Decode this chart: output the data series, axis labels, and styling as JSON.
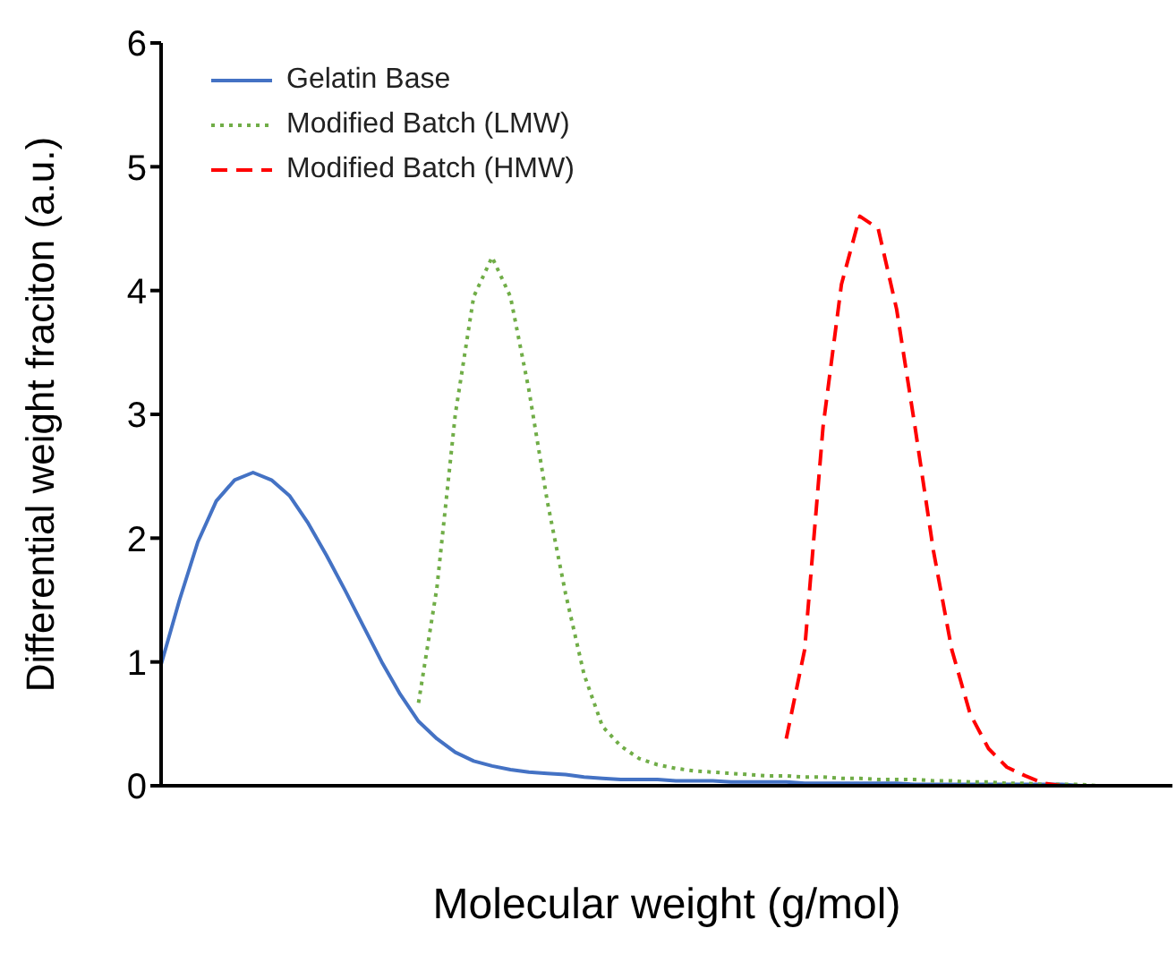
{
  "chart_data": {
    "type": "line",
    "xlabel": "Molecular weight (g/mol)",
    "ylabel": "Differential weight fraciton (a.u.)",
    "categories": [
      null,
      null,
      null,
      null,
      null,
      null,
      null,
      null,
      null,
      null,
      null,
      null,
      null,
      null,
      null,
      null,
      null,
      null,
      null,
      null,
      null,
      null,
      null,
      null,
      null,
      null,
      null,
      null,
      null,
      null,
      null,
      null,
      null,
      null,
      null,
      null,
      null,
      null,
      null,
      null,
      null,
      null,
      null,
      null,
      null,
      null,
      null,
      null,
      null,
      null,
      null,
      null,
      null,
      null,
      null,
      null
    ],
    "ylim": [
      0,
      6
    ],
    "yticks": [
      0,
      1,
      2,
      3,
      4,
      5,
      6
    ],
    "grid": false,
    "legend": "top left",
    "tick_labels": "y",
    "marker": "none",
    "series": [
      {
        "name": "Gelatin Base",
        "color": "#4472c4",
        "line_style": "solid",
        "values": [
          0.98,
          1.5,
          1.97,
          2.3,
          2.47,
          2.53,
          2.47,
          2.34,
          2.12,
          1.86,
          1.58,
          1.29,
          1.0,
          0.74,
          0.52,
          0.38,
          0.27,
          0.2,
          0.16,
          0.13,
          0.11,
          0.1,
          0.09,
          0.07,
          0.06,
          0.05,
          0.05,
          0.05,
          0.04,
          0.04,
          0.04,
          0.03,
          0.03,
          0.03,
          0.03,
          0.02,
          0.02,
          0.02,
          0.02,
          0.02,
          0.02,
          0.01,
          0.01,
          0.01,
          0.01,
          0.01,
          0.01,
          0.01,
          0.01,
          0.01,
          0,
          0,
          null,
          null,
          null,
          null
        ]
      },
      {
        "name": "Modified Batch (LMW)",
        "color": "#70ad47",
        "line_style": "dotted",
        "values": [
          null,
          null,
          null,
          null,
          null,
          null,
          null,
          null,
          null,
          null,
          null,
          null,
          null,
          null,
          0.67,
          1.6,
          3.0,
          3.95,
          4.27,
          3.95,
          3.2,
          2.3,
          1.55,
          0.9,
          0.48,
          0.32,
          0.22,
          0.17,
          0.14,
          0.12,
          0.11,
          0.1,
          0.09,
          0.08,
          0.08,
          0.07,
          0.07,
          0.06,
          0.06,
          0.05,
          0.05,
          0.05,
          0.04,
          0.04,
          0.03,
          0.03,
          0.02,
          0.02,
          0.01,
          0.01,
          0.01,
          0,
          0,
          0,
          null,
          null
        ]
      },
      {
        "name": "Modified Batch (HMW)",
        "color": "#ff0000",
        "line_style": "dashed",
        "values": [
          null,
          null,
          null,
          null,
          null,
          null,
          null,
          null,
          null,
          null,
          null,
          null,
          null,
          null,
          null,
          null,
          null,
          null,
          null,
          null,
          null,
          null,
          null,
          null,
          null,
          null,
          null,
          null,
          null,
          null,
          null,
          null,
          null,
          null,
          0.38,
          1.1,
          2.9,
          4.05,
          4.6,
          4.5,
          3.85,
          2.9,
          1.9,
          1.1,
          0.58,
          0.3,
          0.15,
          0.08,
          0.02,
          0,
          0,
          null,
          null,
          null,
          null,
          null
        ]
      }
    ]
  }
}
